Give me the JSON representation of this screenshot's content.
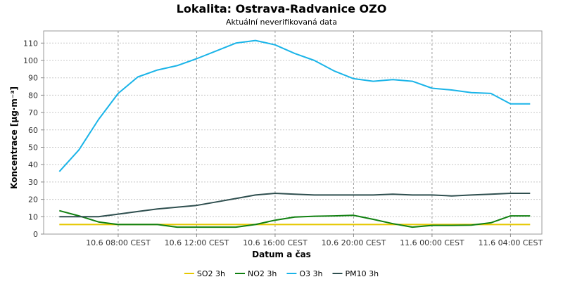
{
  "chart_data": {
    "type": "line",
    "title": "Lokalita: Ostrava-Radvanice OZO",
    "subtitle": "Aktuální neverifikovaná data",
    "xlabel": "Datum a čas",
    "ylabel": "Koncentrace [µg·m⁻³]",
    "ylim": [
      0,
      117
    ],
    "yticks": [
      0,
      10,
      20,
      30,
      40,
      50,
      60,
      70,
      80,
      90,
      100,
      110
    ],
    "x_hours": [
      5,
      6,
      7,
      8,
      9,
      10,
      11,
      12,
      13,
      14,
      15,
      16,
      17,
      18,
      19,
      20,
      21,
      22,
      23,
      24,
      25,
      26,
      27,
      28,
      29
    ],
    "xlim_hours": [
      4.2,
      29.6
    ],
    "xticks": [
      {
        "hour": 8,
        "label": "10.6 08:00 CEST"
      },
      {
        "hour": 12,
        "label": "10.6 12:00 CEST"
      },
      {
        "hour": 16,
        "label": "10.6 16:00 CEST"
      },
      {
        "hour": 20,
        "label": "10.6 20:00 CEST"
      },
      {
        "hour": 24,
        "label": "11.6 00:00 CEST"
      },
      {
        "hour": 28,
        "label": "11.6 04:00 CEST"
      }
    ],
    "grid": true,
    "legend_position": "bottom-center",
    "series": [
      {
        "name": "SO2 3h",
        "color": "#e6c800",
        "values": [
          5.5,
          5.5,
          5.5,
          5.5,
          5.5,
          5.5,
          5.5,
          5.5,
          5.5,
          5.5,
          5.5,
          5.5,
          5.5,
          5.5,
          5.5,
          5.5,
          5.5,
          5.5,
          5.5,
          5.5,
          5.5,
          5.5,
          5.5,
          5.5,
          5.5
        ]
      },
      {
        "name": "NO2 3h",
        "color": "#108010",
        "values": [
          13.5,
          10.5,
          7,
          5.5,
          5.5,
          5.5,
          4,
          4,
          4,
          4,
          5.5,
          8,
          9.8,
          10.3,
          10.5,
          10.8,
          8.5,
          6,
          4,
          5,
          5,
          5.2,
          6.5,
          10.5,
          10.5
        ]
      },
      {
        "name": "O3 3h",
        "color": "#1ab4e8",
        "values": [
          36,
          48.5,
          66,
          81,
          90.5,
          94.5,
          97,
          101,
          105.5,
          110,
          111.5,
          109,
          104,
          100,
          94,
          89.5,
          88,
          89,
          88,
          84,
          83,
          81.5,
          81,
          75,
          75
        ]
      },
      {
        "name": "PM10 3h",
        "color": "#2f4f4f",
        "values": [
          10,
          10,
          10,
          11.5,
          13,
          14.5,
          15.5,
          16.5,
          18.5,
          20.5,
          22.5,
          23.5,
          23,
          22.5,
          22.5,
          22.5,
          22.5,
          23,
          22.5,
          22.5,
          22,
          22.5,
          23,
          23.5,
          23.5
        ]
      }
    ]
  }
}
